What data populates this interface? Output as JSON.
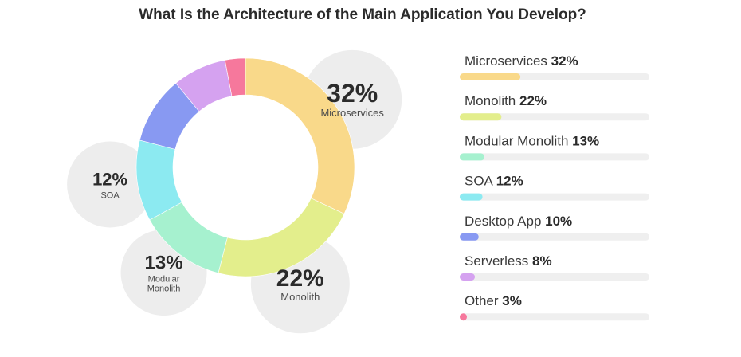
{
  "chart_data": {
    "type": "pie",
    "title": "What Is the Architecture of the Main Application You Develop?",
    "categories": [
      "Microservices",
      "Monolith",
      "Modular Monolith",
      "SOA",
      "Desktop App",
      "Serverless",
      "Other"
    ],
    "values": [
      32,
      22,
      13,
      12,
      10,
      8,
      3
    ],
    "value_labels": [
      "32%",
      "22%",
      "13%",
      "12%",
      "10%",
      "8%",
      "3%"
    ],
    "colors": [
      "#f9d98a",
      "#e3ee8c",
      "#a6f1cf",
      "#8ceaf1",
      "#8899f2",
      "#d5a2f0",
      "#f6789c"
    ],
    "callouts": [
      {
        "category": "Microservices",
        "value_label": "32%",
        "name_lines": [
          "Microservices"
        ]
      },
      {
        "category": "Monolith",
        "value_label": "22%",
        "name_lines": [
          "Monolith"
        ]
      },
      {
        "category": "Modular Monolith",
        "value_label": "13%",
        "name_lines": [
          "Modular",
          "Monolith"
        ]
      },
      {
        "category": "SOA",
        "value_label": "12%",
        "name_lines": [
          "SOA"
        ]
      }
    ],
    "legend_placement": "right"
  }
}
